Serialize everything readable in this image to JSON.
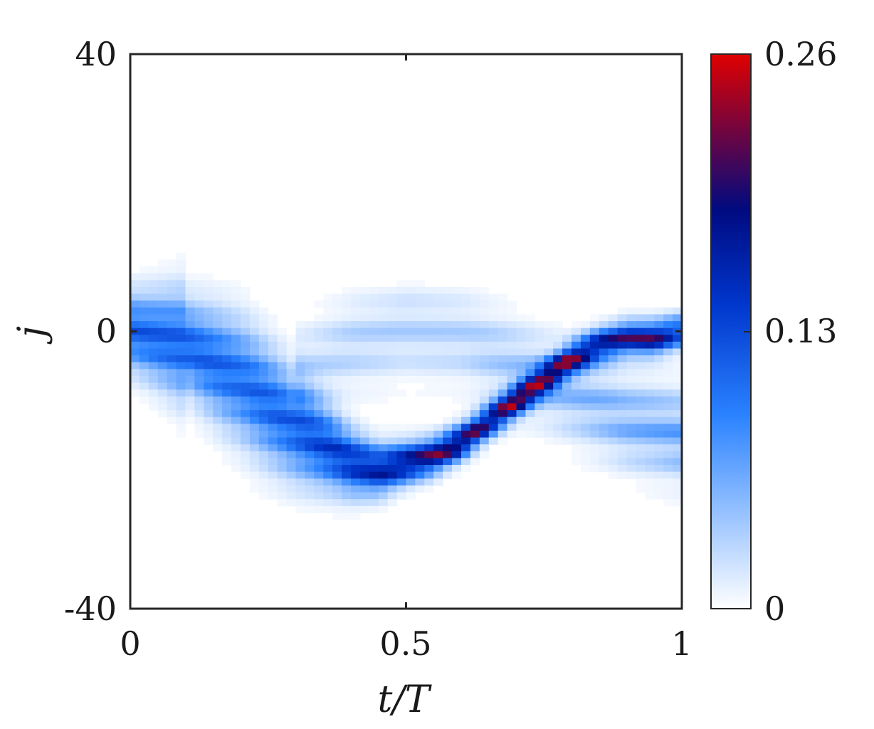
{
  "chart_data": {
    "type": "heatmap",
    "title": "",
    "xlabel": "t/T",
    "ylabel": "j",
    "xlim": [
      0,
      1
    ],
    "ylim": [
      -40,
      40
    ],
    "x_ticks": [
      0,
      0.5,
      1
    ],
    "x_tick_labels": [
      "0",
      "0.5",
      "1"
    ],
    "y_ticks": [
      40,
      0,
      -40
    ],
    "y_tick_labels": [
      "40",
      "0",
      "-40"
    ],
    "grid": false,
    "colorbar": {
      "min": 0,
      "max": 0.26,
      "ticks": [
        0.26,
        0.13,
        0
      ],
      "tick_labels": [
        "0.26",
        "0.13",
        "0"
      ],
      "colors": [
        "#ffffff",
        "#2a82ff",
        "#0036cc",
        "#000a80",
        "#e00000"
      ],
      "stops": [
        0,
        0.35,
        0.55,
        0.72,
        1
      ]
    },
    "main_track": {
      "description_values": "center j vs t/T of the dominant band",
      "t": [
        0,
        0.1,
        0.2,
        0.3,
        0.4,
        0.45,
        0.5,
        0.55,
        0.6,
        0.65,
        0.7,
        0.75,
        0.8,
        0.85,
        0.9,
        0.95,
        1.0
      ],
      "j": [
        0,
        -2,
        -7,
        -14,
        -19,
        -20,
        -19,
        -18,
        -16,
        -13,
        -10,
        -7,
        -4,
        -2,
        -1,
        -1,
        0
      ],
      "peak": [
        0.13,
        0.13,
        0.12,
        0.13,
        0.17,
        0.19,
        0.21,
        0.23,
        0.24,
        0.22,
        0.25,
        0.23,
        0.22,
        0.2,
        0.21,
        0.22,
        0.15
      ]
    },
    "secondary_track": {
      "t": [
        0.3,
        0.4,
        0.5,
        0.6,
        0.7,
        0.8,
        0.9,
        1.0
      ],
      "j": [
        -6,
        -2,
        0,
        -1,
        -5,
        -9,
        -13,
        -15
      ],
      "peak": [
        0.03,
        0.04,
        0.04,
        0.04,
        0.05,
        0.06,
        0.07,
        0.08
      ]
    }
  }
}
